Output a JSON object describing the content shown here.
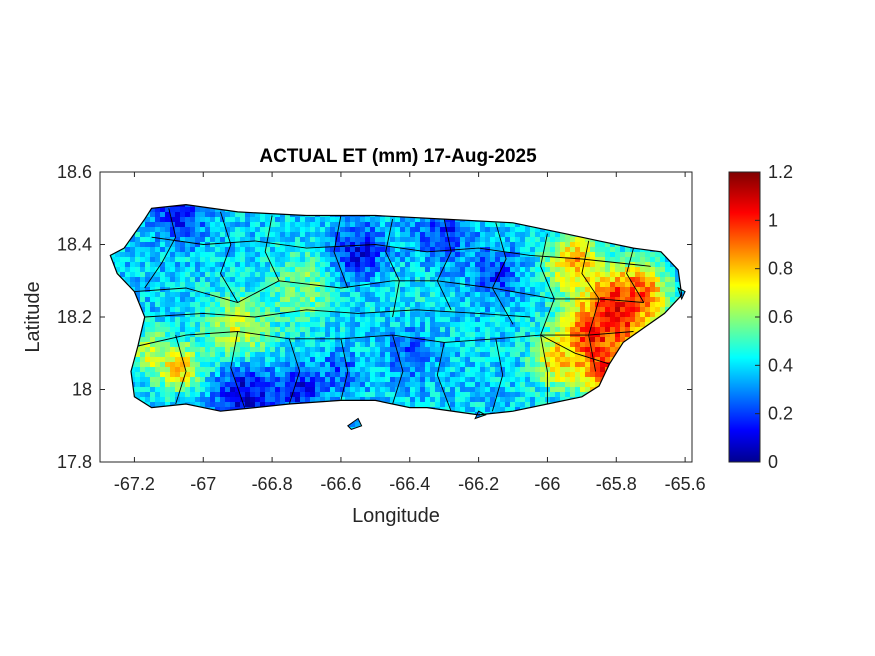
{
  "chart_data": {
    "type": "heatmap",
    "title": "ACTUAL ET (mm) 17-Aug-2025",
    "xlabel": "Longitude",
    "ylabel": "Latitude",
    "xlim": [
      -67.3,
      -65.58
    ],
    "ylim": [
      17.8,
      18.6
    ],
    "xticks": [
      -67.2,
      -67,
      -66.8,
      -66.6,
      -66.4,
      -66.2,
      -66,
      -65.8,
      -65.6
    ],
    "xtick_labels": [
      "-67.2",
      "-67",
      "-66.8",
      "-66.6",
      "-66.4",
      "-66.2",
      "-66",
      "-65.8",
      "-65.6"
    ],
    "yticks": [
      17.8,
      18,
      18.2,
      18.4,
      18.6
    ],
    "ytick_labels": [
      "17.8",
      "18",
      "18.2",
      "18.4",
      "18.6"
    ],
    "colormap": "jet",
    "clim": [
      0,
      1.2
    ],
    "colorbar_ticks": [
      0,
      0.2,
      0.4,
      0.6,
      0.8,
      1,
      1.2
    ],
    "colorbar_tick_labels": [
      "0",
      "0.2",
      "0.4",
      "0.6",
      "0.8",
      "1",
      "1.2"
    ],
    "grid": false,
    "ocean_color": "#ffffff",
    "boundary_color": "#000000",
    "coastline": [
      [
        -67.27,
        18.37
      ],
      [
        -67.23,
        18.39
      ],
      [
        -67.2,
        18.43
      ],
      [
        -67.17,
        18.47
      ],
      [
        -67.15,
        18.5
      ],
      [
        -67.05,
        18.51
      ],
      [
        -66.9,
        18.49
      ],
      [
        -66.7,
        18.48
      ],
      [
        -66.5,
        18.48
      ],
      [
        -66.3,
        18.47
      ],
      [
        -66.1,
        18.46
      ],
      [
        -65.95,
        18.43
      ],
      [
        -65.85,
        18.41
      ],
      [
        -65.75,
        18.39
      ],
      [
        -65.67,
        18.38
      ],
      [
        -65.62,
        18.33
      ],
      [
        -65.61,
        18.26
      ],
      [
        -65.66,
        18.21
      ],
      [
        -65.72,
        18.17
      ],
      [
        -65.78,
        18.13
      ],
      [
        -65.82,
        18.07
      ],
      [
        -65.85,
        18.01
      ],
      [
        -65.9,
        17.98
      ],
      [
        -66.0,
        17.96
      ],
      [
        -66.1,
        17.94
      ],
      [
        -66.2,
        17.93
      ],
      [
        -66.35,
        17.95
      ],
      [
        -66.4,
        17.95
      ],
      [
        -66.5,
        17.97
      ],
      [
        -66.6,
        17.97
      ],
      [
        -66.75,
        17.96
      ],
      [
        -66.85,
        17.95
      ],
      [
        -66.95,
        17.94
      ],
      [
        -67.05,
        17.96
      ],
      [
        -67.15,
        17.95
      ],
      [
        -67.2,
        17.98
      ],
      [
        -67.21,
        18.05
      ],
      [
        -67.19,
        18.12
      ],
      [
        -67.17,
        18.2
      ],
      [
        -67.2,
        18.27
      ],
      [
        -67.25,
        18.32
      ]
    ],
    "boundaries": [
      [
        [
          -67.1,
          18.5
        ],
        [
          -67.08,
          18.42
        ],
        [
          -67.12,
          18.35
        ],
        [
          -67.17,
          18.28
        ]
      ],
      [
        [
          -66.95,
          18.49
        ],
        [
          -66.92,
          18.4
        ],
        [
          -66.95,
          18.32
        ],
        [
          -66.9,
          18.24
        ]
      ],
      [
        [
          -66.8,
          18.48
        ],
        [
          -66.82,
          18.38
        ],
        [
          -66.78,
          18.3
        ]
      ],
      [
        [
          -66.6,
          18.48
        ],
        [
          -66.62,
          18.38
        ],
        [
          -66.58,
          18.28
        ]
      ],
      [
        [
          -66.45,
          18.47
        ],
        [
          -66.47,
          18.38
        ],
        [
          -66.43,
          18.3
        ],
        [
          -66.45,
          18.2
        ]
      ],
      [
        [
          -66.3,
          18.47
        ],
        [
          -66.28,
          18.38
        ],
        [
          -66.32,
          18.3
        ],
        [
          -66.28,
          18.22
        ]
      ],
      [
        [
          -66.15,
          18.46
        ],
        [
          -66.12,
          18.36
        ],
        [
          -66.16,
          18.28
        ],
        [
          -66.1,
          18.18
        ]
      ],
      [
        [
          -66.0,
          18.43
        ],
        [
          -66.02,
          18.34
        ],
        [
          -65.98,
          18.25
        ],
        [
          -66.02,
          18.15
        ],
        [
          -66.0,
          18.05
        ],
        [
          -66.0,
          17.96
        ]
      ],
      [
        [
          -65.88,
          18.41
        ],
        [
          -65.9,
          18.32
        ],
        [
          -65.85,
          18.25
        ],
        [
          -65.88,
          18.15
        ],
        [
          -65.86,
          18.05
        ]
      ],
      [
        [
          -65.75,
          18.39
        ],
        [
          -65.77,
          18.32
        ],
        [
          -65.72,
          18.24
        ]
      ],
      [
        [
          -67.2,
          18.27
        ],
        [
          -67.05,
          18.28
        ],
        [
          -66.9,
          18.24
        ],
        [
          -66.78,
          18.3
        ],
        [
          -66.6,
          18.28
        ],
        [
          -66.45,
          18.3
        ],
        [
          -66.32,
          18.3
        ],
        [
          -66.16,
          18.28
        ],
        [
          -65.98,
          18.25
        ],
        [
          -65.85,
          18.25
        ],
        [
          -65.72,
          18.24
        ]
      ],
      [
        [
          -67.19,
          18.12
        ],
        [
          -67.05,
          18.15
        ],
        [
          -66.9,
          18.16
        ],
        [
          -66.75,
          18.14
        ],
        [
          -66.6,
          18.14
        ],
        [
          -66.45,
          18.15
        ],
        [
          -66.3,
          18.13
        ],
        [
          -66.15,
          18.14
        ],
        [
          -66.02,
          18.15
        ],
        [
          -65.88,
          18.15
        ],
        [
          -65.75,
          18.16
        ]
      ],
      [
        [
          -67.08,
          18.15
        ],
        [
          -67.05,
          18.05
        ],
        [
          -67.08,
          17.96
        ]
      ],
      [
        [
          -66.9,
          18.16
        ],
        [
          -66.92,
          18.06
        ],
        [
          -66.88,
          17.95
        ]
      ],
      [
        [
          -66.75,
          18.14
        ],
        [
          -66.72,
          18.05
        ],
        [
          -66.75,
          17.96
        ]
      ],
      [
        [
          -66.6,
          18.14
        ],
        [
          -66.58,
          18.05
        ],
        [
          -66.6,
          17.97
        ]
      ],
      [
        [
          -66.45,
          18.15
        ],
        [
          -66.42,
          18.05
        ],
        [
          -66.45,
          17.96
        ]
      ],
      [
        [
          -66.3,
          18.13
        ],
        [
          -66.32,
          18.04
        ],
        [
          -66.28,
          17.94
        ]
      ],
      [
        [
          -66.15,
          18.14
        ],
        [
          -66.13,
          18.04
        ],
        [
          -66.16,
          17.94
        ]
      ],
      [
        [
          -66.02,
          18.15
        ],
        [
          -65.92,
          18.1
        ],
        [
          -65.82,
          18.07
        ]
      ],
      [
        [
          -67.17,
          18.2
        ],
        [
          -67.0,
          18.21
        ],
        [
          -66.85,
          18.2
        ],
        [
          -66.7,
          18.22
        ],
        [
          -66.55,
          18.21
        ],
        [
          -66.38,
          18.22
        ],
        [
          -66.2,
          18.21
        ],
        [
          -66.05,
          18.2
        ]
      ],
      [
        [
          -67.15,
          18.42
        ],
        [
          -67.0,
          18.4
        ],
        [
          -66.85,
          18.41
        ],
        [
          -66.7,
          18.39
        ],
        [
          -66.5,
          18.4
        ],
        [
          -66.35,
          18.38
        ],
        [
          -66.2,
          18.39
        ],
        [
          -66.05,
          18.37
        ],
        [
          -65.9,
          18.36
        ],
        [
          -65.7,
          18.34
        ]
      ]
    ],
    "islands": [
      [
        [
          -66.58,
          17.9
        ],
        [
          -66.55,
          17.92
        ],
        [
          -66.54,
          17.9
        ],
        [
          -66.57,
          17.89
        ]
      ],
      [
        [
          -66.2,
          17.94
        ],
        [
          -66.18,
          17.93
        ],
        [
          -66.21,
          17.92
        ]
      ],
      [
        [
          -65.62,
          18.28
        ],
        [
          -65.6,
          18.27
        ],
        [
          -65.61,
          18.25
        ]
      ]
    ],
    "hotspots": [
      {
        "lon": -65.8,
        "lat": 18.22,
        "value": 1.15,
        "radius": 0.1
      },
      {
        "lon": -65.88,
        "lat": 18.13,
        "value": 1.05,
        "radius": 0.09
      },
      {
        "lon": -65.83,
        "lat": 18.05,
        "value": 1.0,
        "radius": 0.07
      },
      {
        "lon": -65.73,
        "lat": 18.27,
        "value": 0.95,
        "radius": 0.07
      },
      {
        "lon": -65.92,
        "lat": 18.35,
        "value": 0.85,
        "radius": 0.08
      },
      {
        "lon": -65.97,
        "lat": 18.08,
        "value": 0.8,
        "radius": 0.07
      },
      {
        "lon": -66.9,
        "lat": 18.16,
        "value": 0.7,
        "radius": 0.1
      },
      {
        "lon": -67.07,
        "lat": 18.06,
        "value": 0.85,
        "radius": 0.06
      },
      {
        "lon": -67.15,
        "lat": 18.1,
        "value": 0.7,
        "radius": 0.06
      },
      {
        "lon": -66.7,
        "lat": 18.28,
        "value": 0.6,
        "radius": 0.1
      },
      {
        "lon": -66.4,
        "lat": 18.2,
        "value": 0.45,
        "radius": 0.12
      }
    ],
    "coldspots": [
      {
        "lon": -67.07,
        "lat": 18.48,
        "value": 0.15,
        "radius": 0.07
      },
      {
        "lon": -66.88,
        "lat": 17.98,
        "value": 0.1,
        "radius": 0.09
      },
      {
        "lon": -66.72,
        "lat": 18.0,
        "value": 0.15,
        "radius": 0.07
      },
      {
        "lon": -66.55,
        "lat": 18.38,
        "value": 0.15,
        "radius": 0.08
      },
      {
        "lon": -66.3,
        "lat": 18.43,
        "value": 0.2,
        "radius": 0.08
      },
      {
        "lon": -66.4,
        "lat": 18.1,
        "value": 0.25,
        "radius": 0.08
      },
      {
        "lon": -66.15,
        "lat": 18.32,
        "value": 0.2,
        "radius": 0.07
      },
      {
        "lon": -66.6,
        "lat": 18.05,
        "value": 0.25,
        "radius": 0.06
      }
    ],
    "base_value": 0.4
  }
}
